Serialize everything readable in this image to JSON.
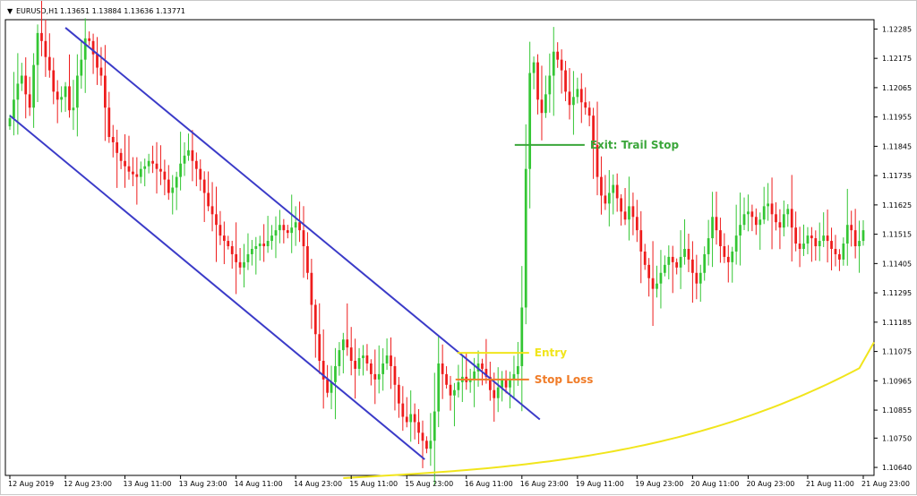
{
  "header": {
    "menu_glyph": "▼",
    "symbol": "EURUSD,H1",
    "ohlc": "1.13651 1.13884 1.13636 1.13771"
  },
  "chart_data": {
    "type": "candlestick",
    "symbol": "EURUSD",
    "timeframe": "H1",
    "y_ticks": [
      "1.12285",
      "1.12175",
      "1.12065",
      "1.11955",
      "1.11845",
      "1.11735",
      "1.11625",
      "1.11515",
      "1.11405",
      "1.11295",
      "1.11185",
      "1.11075",
      "1.10965",
      "1.10855",
      "1.10750",
      "1.10640"
    ],
    "x_ticks": [
      "12 Aug 2019",
      "12 Aug 23:00",
      "13 Aug 11:00",
      "13 Aug 23:00",
      "14 Aug 11:00",
      "14 Aug 23:00",
      "15 Aug 11:00",
      "15 Aug 23:00",
      "16 Aug 11:00",
      "16 Aug 23:00",
      "19 Aug 11:00",
      "19 Aug 23:00",
      "20 Aug 11:00",
      "20 Aug 23:00",
      "21 Aug 11:00",
      "21 Aug 23:00"
    ],
    "ylim": [
      1.1061,
      1.1232
    ],
    "close": [
      1.1195,
      1.1202,
      1.1208,
      1.1211,
      1.1204,
      1.1199,
      1.1215,
      1.1227,
      1.1224,
      1.1218,
      1.1213,
      1.1205,
      1.1202,
      1.1203,
      1.1207,
      1.1198,
      1.1199,
      1.1211,
      1.1217,
      1.1225,
      1.1224,
      1.1219,
      1.1214,
      1.1211,
      1.1199,
      1.1188,
      1.1186,
      1.1182,
      1.1179,
      1.1177,
      1.1175,
      1.1174,
      1.1173,
      1.1176,
      1.1177,
      1.1179,
      1.1178,
      1.1176,
      1.1175,
      1.1172,
      1.1167,
      1.1169,
      1.1173,
      1.1178,
      1.1181,
      1.1183,
      1.1179,
      1.1176,
      1.1172,
      1.1167,
      1.1162,
      1.1159,
      1.1155,
      1.1151,
      1.1149,
      1.1147,
      1.1144,
      1.1141,
      1.1139,
      1.1141,
      1.1144,
      1.1146,
      1.1147,
      1.1148,
      1.1147,
      1.1149,
      1.1151,
      1.1153,
      1.1155,
      1.1153,
      1.1152,
      1.1154,
      1.1156,
      1.1153,
      1.1147,
      1.1137,
      1.1125,
      1.1114,
      1.1104,
      1.1097,
      1.1092,
      1.1096,
      1.1102,
      1.1108,
      1.1112,
      1.1109,
      1.1104,
      1.1101,
      1.1105,
      1.1106,
      1.1103,
      1.1099,
      1.1097,
      1.1099,
      1.1103,
      1.1106,
      1.1102,
      1.1095,
      1.1088,
      1.1083,
      1.1081,
      1.1084,
      1.1081,
      1.1077,
      1.1074,
      1.1071,
      1.1074,
      1.1085,
      1.1103,
      1.1099,
      1.1095,
      1.1091,
      1.1093,
      1.1096,
      1.1098,
      1.1096,
      1.1097,
      1.11,
      1.1103,
      1.1101,
      1.1098,
      1.1093,
      1.109,
      1.1094,
      1.1097,
      1.1094,
      1.1097,
      1.1099,
      1.1102,
      1.1124,
      1.1176,
      1.1212,
      1.1216,
      1.1202,
      1.1197,
      1.1204,
      1.1211,
      1.122,
      1.1217,
      1.1213,
      1.1205,
      1.12,
      1.1203,
      1.1206,
      1.1201,
      1.1199,
      1.1196,
      1.1185,
      1.1173,
      1.1166,
      1.1163,
      1.1167,
      1.117,
      1.1165,
      1.116,
      1.1157,
      1.1162,
      1.1158,
      1.1153,
      1.1145,
      1.114,
      1.1135,
      1.1131,
      1.1133,
      1.1137,
      1.114,
      1.1143,
      1.1141,
      1.1139,
      1.1143,
      1.1146,
      1.1142,
      1.1137,
      1.1133,
      1.1137,
      1.1144,
      1.115,
      1.1158,
      1.1153,
      1.1147,
      1.1143,
      1.1141,
      1.1145,
      1.1151,
      1.1155,
      1.1159,
      1.116,
      1.1158,
      1.1155,
      1.1157,
      1.1162,
      1.1163,
      1.1159,
      1.1156,
      1.1154,
      1.1159,
      1.1161,
      1.1154,
      1.1148,
      1.1146,
      1.1148,
      1.1151,
      1.115,
      1.1147,
      1.1149,
      1.1151,
      1.1149,
      1.1146,
      1.1144,
      1.1142,
      1.1148,
      1.1155,
      1.1153,
      1.1147,
      1.1149,
      1.1153
    ],
    "channel_upper": [
      [
        1.1229,
        "12 Aug 23:00"
      ],
      [
        1.1082,
        "16 Aug 23:00"
      ]
    ],
    "channel_lower": [
      [
        1.1196,
        "12 Aug 2019"
      ],
      [
        1.1067,
        "15 Aug 23:00"
      ]
    ],
    "moving_average_color": "#f1e51c",
    "levels": [
      {
        "label": "Entry",
        "price": 1.1107,
        "color": "#f1e51c"
      },
      {
        "label": "Stop Loss",
        "price": 1.1097,
        "color": "#f07c28"
      },
      {
        "label": "Exit: Trail Stop",
        "price": 1.1185,
        "color": "#3aa63a"
      }
    ],
    "colors": {
      "bull": "#34c634",
      "bear": "#ee1c1c",
      "channel": "#3b3bc8",
      "grid": "none"
    }
  }
}
